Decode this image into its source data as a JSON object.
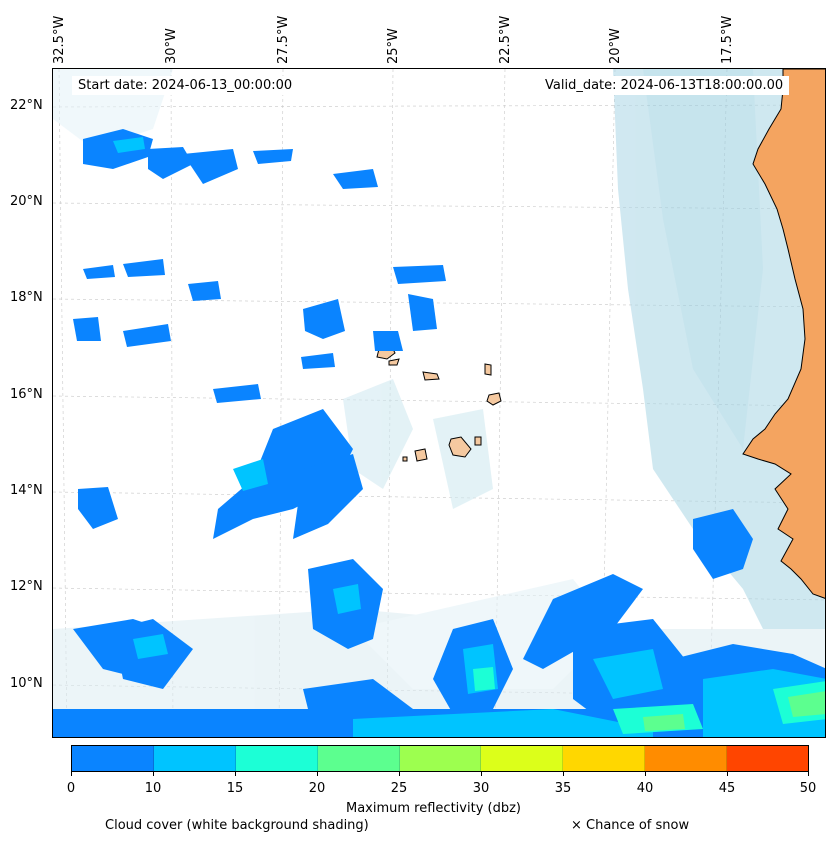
{
  "header": {
    "start_date": "Start date: 2024-06-13_00:00:00",
    "valid_date": "Valid_date: 2024-06-13T18:00:00.00"
  },
  "axes": {
    "longitude_ticks": [
      "32.5°W",
      "30°W",
      "27.5°W",
      "25°W",
      "22.5°W",
      "20°W",
      "17.5°W"
    ],
    "latitude_ticks": [
      "22°N",
      "20°N",
      "18°N",
      "16°N",
      "14°N",
      "12°N",
      "10°N"
    ]
  },
  "colorbar": {
    "label": "Maximum reflectivity (dbz)",
    "ticks": [
      "0",
      "10",
      "15",
      "20",
      "25",
      "30",
      "35",
      "40",
      "45",
      "50"
    ],
    "colors": [
      "#0a84ff",
      "#00c4ff",
      "#1cffd6",
      "#5cff8f",
      "#9dff4f",
      "#dcff1a",
      "#ffd700",
      "#ff8c00",
      "#ff4500"
    ]
  },
  "legend": {
    "cloud_cover": "Cloud cover (white background shading)",
    "snow": "× Chance of snow"
  },
  "colors": {
    "land": "#f4a460",
    "island": "#f5c9a0",
    "cloud": "#a9d6e5",
    "refl_low": "#0a84ff",
    "refl_mid": "#00c4ff",
    "refl_hi": "#1cffd6",
    "refl_hi2": "#5cff8f"
  }
}
